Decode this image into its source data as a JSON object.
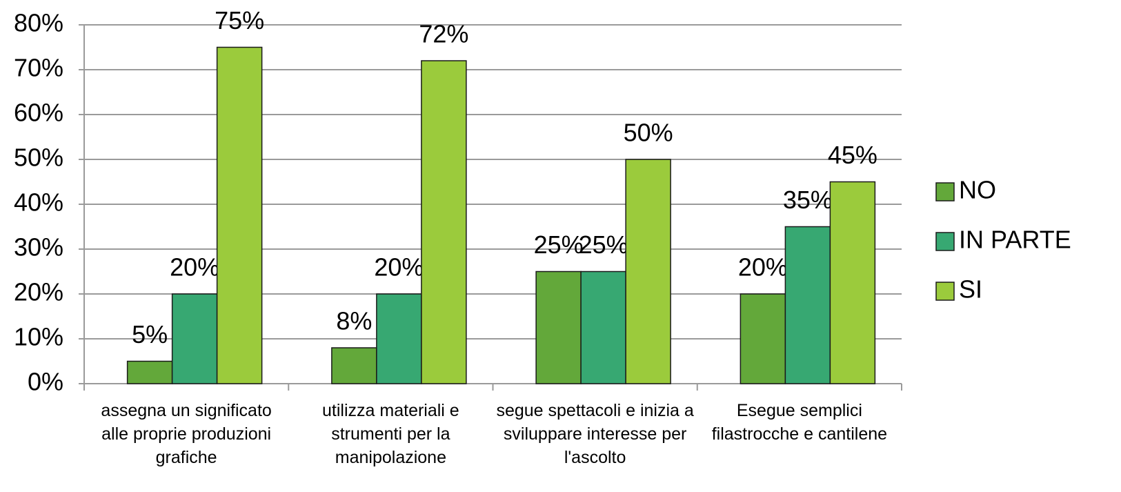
{
  "chart_data": {
    "type": "bar",
    "categories": [
      "assegna un significato alle proprie produzioni grafiche",
      "utilizza materiali e strumenti per la manipolazione",
      "segue spettacoli e inizia a sviluppare interesse per l'ascolto",
      "Esegue semplici filastrocche e cantilene"
    ],
    "series": [
      {
        "name": "NO",
        "color": "#63a83a",
        "values": [
          5,
          8,
          25,
          20
        ],
        "value_labels": [
          "5%",
          "8%",
          "25%",
          "20%"
        ]
      },
      {
        "name": "IN PARTE",
        "color": "#37a872",
        "values": [
          20,
          20,
          25,
          35
        ],
        "value_labels": [
          "20%",
          "20%",
          "25%",
          "35%"
        ]
      },
      {
        "name": "SI",
        "color": "#9bcb3c",
        "values": [
          75,
          72,
          50,
          45
        ],
        "value_labels": [
          "75%",
          "72%",
          "50%",
          "45%"
        ]
      }
    ],
    "ylim": [
      0,
      80
    ],
    "yticks": [
      {
        "value": 0,
        "label": "0%"
      },
      {
        "value": 10,
        "label": "10%"
      },
      {
        "value": 20,
        "label": "20%"
      },
      {
        "value": 30,
        "label": "30%"
      },
      {
        "value": 40,
        "label": "40%"
      },
      {
        "value": 50,
        "label": "50%"
      },
      {
        "value": 60,
        "label": "60%"
      },
      {
        "value": 70,
        "label": "70%"
      },
      {
        "value": 80,
        "label": "80%"
      }
    ],
    "grid": true,
    "legend": "right"
  }
}
